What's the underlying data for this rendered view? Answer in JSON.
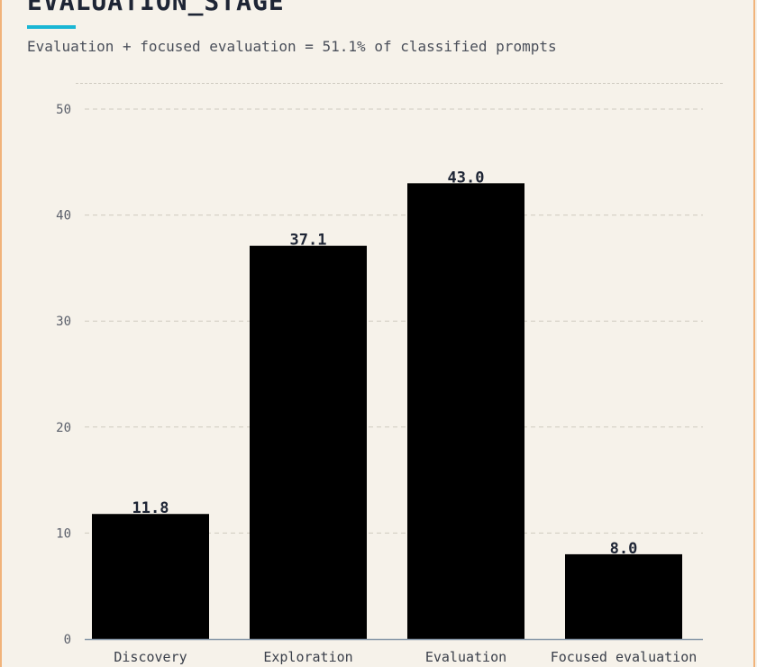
{
  "header": {
    "title": "EVALUATION_STAGE",
    "subtitle": "Evaluation + focused evaluation = 51.1% of classified prompts"
  },
  "colors": {
    "background": "#f6f2ea",
    "bar": "#000000",
    "accent": "#1ab6d4",
    "border": "#f1b37a",
    "grid": "#cfcac0",
    "axis": "#8a9aaa"
  },
  "chart_data": {
    "type": "bar",
    "categories": [
      "Discovery",
      "Exploration",
      "Evaluation",
      "Focused evaluation"
    ],
    "values": [
      11.8,
      37.1,
      43.0,
      8.0
    ],
    "value_labels": [
      "11.8",
      "37.1",
      "43.0",
      "8.0"
    ],
    "title": "EVALUATION_STAGE",
    "subtitle": "Evaluation + focused evaluation = 51.1% of classified prompts",
    "xlabel": "",
    "ylabel": "",
    "ylim": [
      0,
      50
    ],
    "yticks": [
      0,
      10,
      20,
      30,
      40,
      50
    ],
    "grid": true,
    "legend": "none"
  }
}
